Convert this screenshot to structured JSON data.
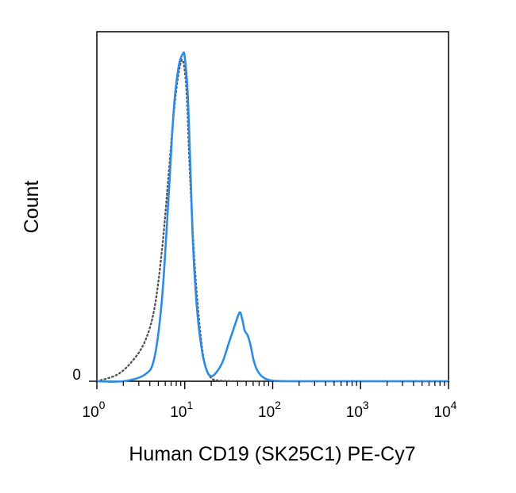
{
  "chart_data": {
    "type": "line",
    "title": "",
    "xlabel": "Human CD19 (SK25C1) PE-Cy7",
    "ylabel": "Count",
    "x_scale": "log",
    "xlim": [
      1,
      10000
    ],
    "ylim": [
      0,
      100
    ],
    "y_ticks": [
      {
        "value": 0,
        "label": "0"
      }
    ],
    "x_ticks": [
      {
        "value": 1,
        "base": "10",
        "exp": "0"
      },
      {
        "value": 10,
        "base": "10",
        "exp": "1"
      },
      {
        "value": 100,
        "base": "10",
        "exp": "2"
      },
      {
        "value": 1000,
        "base": "10",
        "exp": "3"
      },
      {
        "value": 10000,
        "base": "10",
        "exp": "4"
      }
    ],
    "grid": false,
    "legend": "none",
    "series": [
      {
        "style": "solid",
        "color": "#2b8ce6",
        "x": [
          1,
          2,
          3.5,
          4.5,
          5.5,
          6.5,
          7.5,
          8.5,
          9.5,
          10,
          10.8,
          11.5,
          12.5,
          14,
          16,
          18,
          20,
          23,
          27,
          32,
          37,
          42,
          45,
          48,
          52,
          56,
          60,
          65,
          72,
          80,
          90,
          110,
          150,
          300,
          1000,
          10000
        ],
        "y": [
          0,
          0,
          2,
          7,
          25,
          55,
          83,
          96,
          100,
          99,
          88,
          68,
          40,
          20,
          8,
          3,
          1.5,
          2.8,
          6,
          12,
          17,
          21,
          19,
          15.5,
          14,
          11,
          7,
          4,
          2,
          1,
          0.4,
          0.1,
          0,
          0,
          0,
          0
        ]
      },
      {
        "style": "dotted",
        "color": "#555555",
        "x": [
          1,
          1.7,
          2.5,
          3.5,
          4.5,
          5.5,
          6.5,
          7.5,
          8.5,
          9.5,
          10.5,
          11.5,
          13,
          15,
          17,
          20,
          25,
          40,
          100,
          1000,
          10000
        ],
        "y": [
          0,
          2,
          6,
          12,
          22,
          40,
          62,
          82,
          94,
          98,
          88,
          62,
          35,
          15,
          5,
          1,
          0.2,
          0,
          0,
          0,
          0
        ]
      }
    ]
  }
}
